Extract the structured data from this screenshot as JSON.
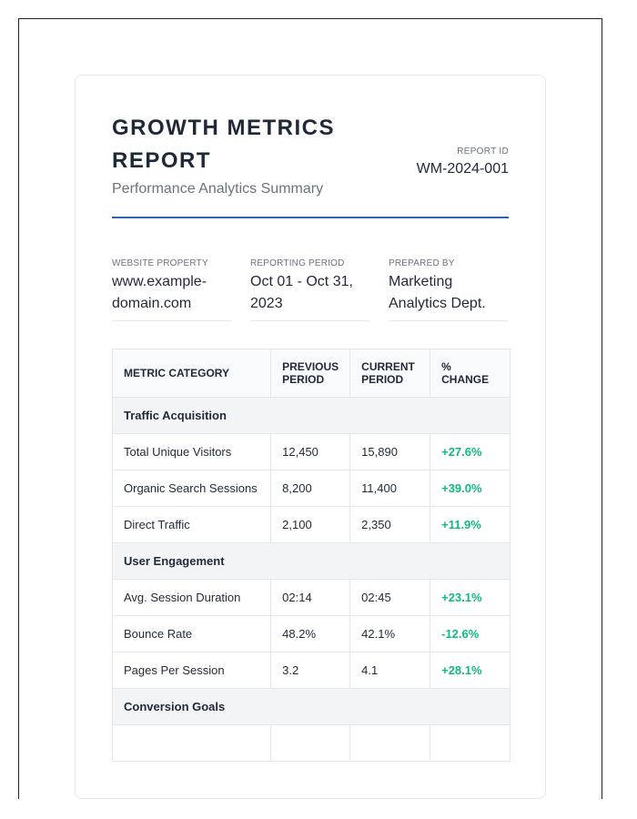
{
  "header": {
    "title": "GROWTH METRICS REPORT",
    "subtitle": "Performance Analytics Summary",
    "report_id_label": "REPORT ID",
    "report_id": "WM-2024-001"
  },
  "meta": [
    {
      "label": "WEBSITE PROPERTY",
      "value": "www.example-domain.com"
    },
    {
      "label": "REPORTING PERIOD",
      "value": "Oct 01 - Oct 31, 2023"
    },
    {
      "label": "PREPARED BY",
      "value": "Marketing Analytics Dept."
    }
  ],
  "table": {
    "headers": [
      "METRIC CATEGORY",
      "PREVIOUS PERIOD",
      "CURRENT PERIOD",
      "% CHANGE"
    ],
    "sections": [
      {
        "category": "Traffic Acquisition",
        "rows": [
          [
            "Total Unique Visitors",
            "12,450",
            "15,890",
            "+27.6%"
          ],
          [
            "Organic Search Sessions",
            "8,200",
            "11,400",
            "+39.0%"
          ],
          [
            "Direct Traffic",
            "2,100",
            "2,350",
            "+11.9%"
          ]
        ]
      },
      {
        "category": "User Engagement",
        "rows": [
          [
            "Avg. Session Duration",
            "02:14",
            "02:45",
            "+23.1%"
          ],
          [
            "Bounce Rate",
            "48.2%",
            "42.1%",
            "-12.6%"
          ],
          [
            "Pages Per Session",
            "3.2",
            "4.1",
            "+28.1%"
          ]
        ]
      },
      {
        "category": "Conversion Goals",
        "rows": [
          [
            "",
            "",
            "",
            ""
          ]
        ]
      }
    ]
  },
  "colors": {
    "accent": "#2b62b8",
    "positive": "#10b981"
  }
}
